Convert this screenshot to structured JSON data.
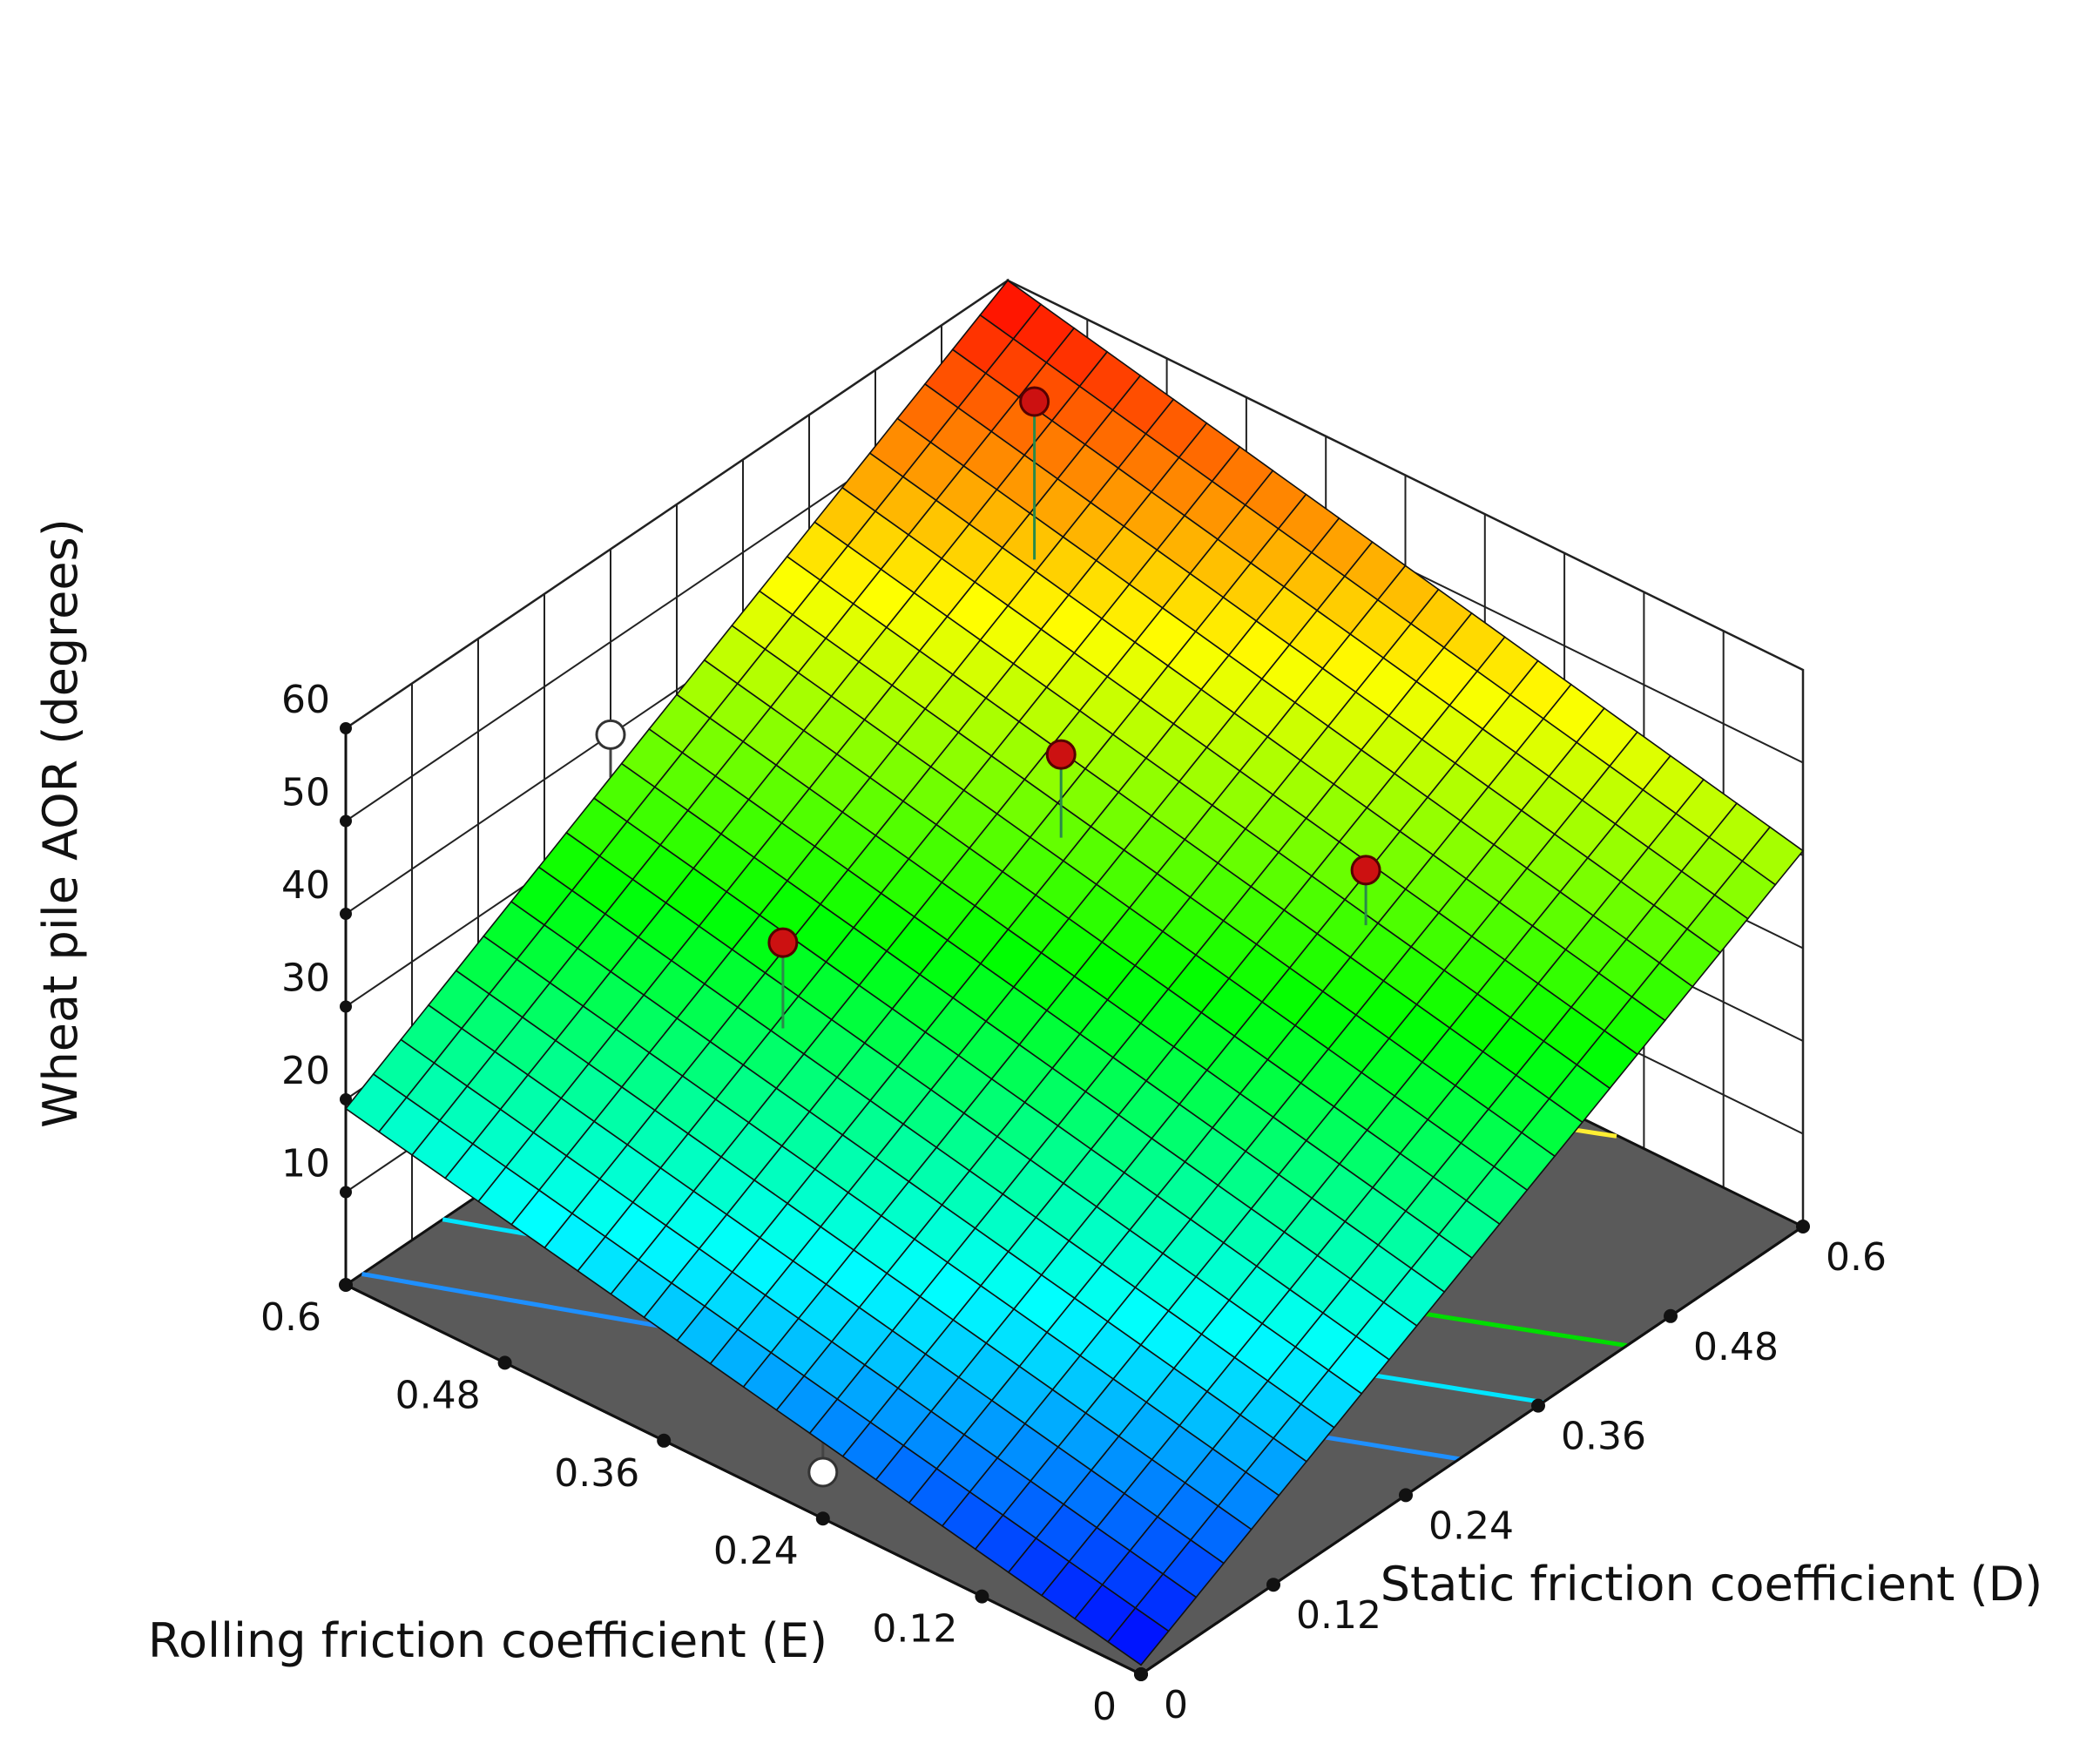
{
  "chart_data": {
    "type": "surface",
    "z_axis": {
      "label": "Wheat pile AOR (degrees)",
      "ticks": [
        10,
        20,
        30,
        40,
        50,
        60
      ],
      "range": [
        0,
        60
      ]
    },
    "x_axis": {
      "label": "Static friction coefficient (D)",
      "ticks": [
        0,
        0.12,
        0.24,
        0.36,
        0.48,
        0.6
      ],
      "tick_labels": [
        "0",
        "0.12",
        "0.24",
        "0.36",
        "0.48",
        "0.6"
      ],
      "range": [
        0,
        0.6
      ]
    },
    "y_axis": {
      "label": "Rolling friction coefficient (E)",
      "ticks": [
        0,
        0.12,
        0.24,
        0.36,
        0.48,
        0.6
      ],
      "tick_labels": [
        "0",
        "0.12",
        "0.24",
        "0.36",
        "0.48",
        "0.6"
      ],
      "range": [
        0,
        0.6
      ]
    },
    "surface": {
      "grid": 24,
      "corner_values": {
        "D0_E0": 1,
        "D0_E0.6": 19,
        "D0.6_E0": 40.5,
        "D0.6_E0.6": 60
      }
    },
    "colormap": [
      "#0000ff",
      "#00ffff",
      "#00ff00",
      "#ffff00",
      "#ff0000"
    ],
    "contour_lines": [
      {
        "level": 20,
        "color": "#1e90ff"
      },
      {
        "level": 25,
        "color": "#00e5ff"
      },
      {
        "level": 30,
        "color": "#00dd00"
      },
      {
        "level": 45,
        "color": "#ffee33"
      }
    ],
    "design_points": [
      {
        "D": 0.36,
        "E": 0.36,
        "aor": 45,
        "above_surface": true
      },
      {
        "D": 0.42,
        "E": 0.18,
        "aor": 40.3,
        "above_surface": true
      },
      {
        "D": 0.18,
        "E": 0.42,
        "aor": 35,
        "above_surface": true
      },
      {
        "D": 0.48,
        "E": 0.48,
        "aor": 65,
        "above_surface": true
      },
      {
        "D": 0.6,
        "E": 0.24,
        "aor": 34,
        "above_surface": false
      },
      {
        "D": 0,
        "E": 0.24,
        "aor": 5,
        "above_surface": false
      },
      {
        "D": 0.24,
        "E": 0.6,
        "aor": 40,
        "above_surface": false
      }
    ],
    "grid_lines": true
  }
}
